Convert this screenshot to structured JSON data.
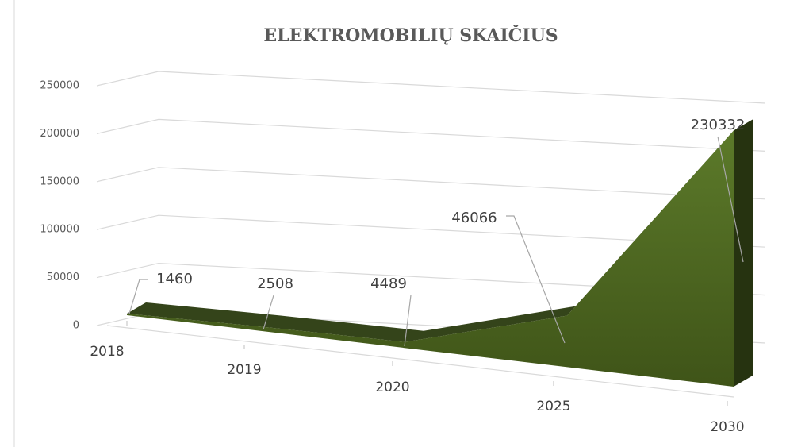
{
  "chart_data": {
    "type": "area3d",
    "title": "ELEKTROMOBILIŲ SKAIČIUS",
    "categories": [
      "2018",
      "2019",
      "2020",
      "2025",
      "2030"
    ],
    "values": [
      1460,
      2508,
      4489,
      46066,
      230332
    ],
    "color": "#4f6228",
    "ylim": [
      0,
      250000
    ],
    "yticks": [
      0,
      50000,
      100000,
      150000,
      200000,
      250000
    ],
    "grid": true
  }
}
